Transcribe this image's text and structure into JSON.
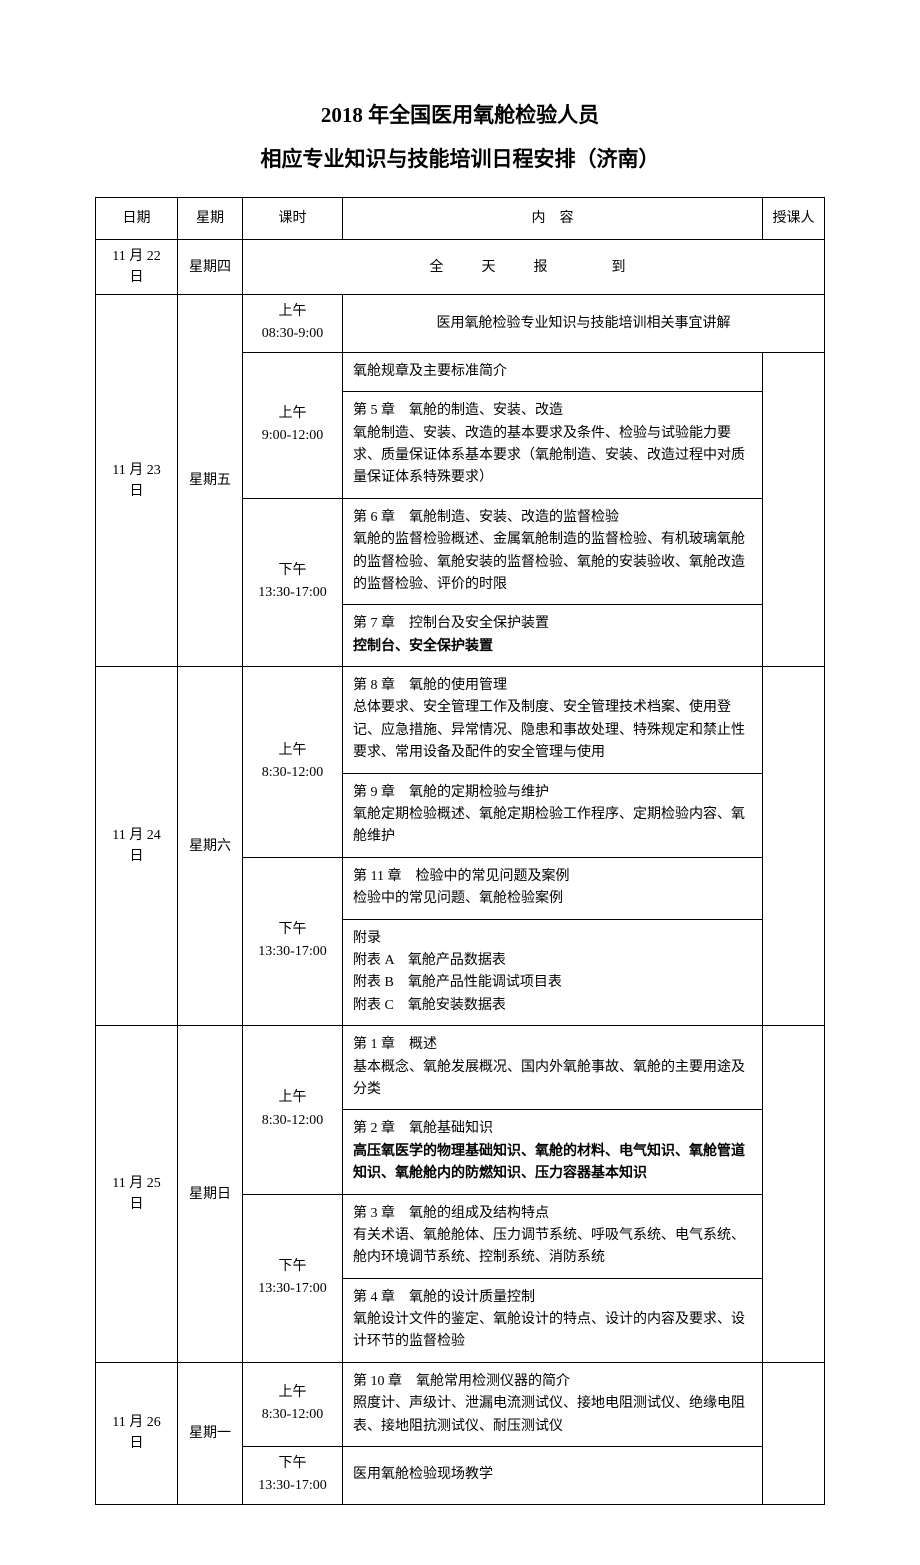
{
  "title": "2018 年全国医用氧舱检验人员",
  "subtitle": "相应专业知识与技能培训日程安排（济南）",
  "headers": {
    "date": "日期",
    "weekday": "星期",
    "session": "课时",
    "content": "内　容",
    "lecturer": "授课人"
  },
  "rows": {
    "r1": {
      "date": "11 月 22 日",
      "weekday": "星期四",
      "content": "全　天　报　　到"
    },
    "r2": {
      "date": "11 月 23 日",
      "weekday": "星期五",
      "s1_time_a": "上午",
      "s1_time_b": "08:30-9:00",
      "s1_content": "医用氧舱检验专业知识与技能培训相关事宜讲解",
      "s2_time_a": "上午",
      "s2_time_b": "9:00-12:00",
      "s2_c1": "氧舱规章及主要标准简介",
      "s2_c2": "第 5 章　氧舱的制造、安装、改造\n氧舱制造、安装、改造的基本要求及条件、检验与试验能力要求、质量保证体系基本要求（氧舱制造、安装、改造过程中对质量保证体系特殊要求）",
      "s3_time_a": "下午",
      "s3_time_b": "13:30-17:00",
      "s3_c1": "第 6 章　氧舱制造、安装、改造的监督检验\n氧舱的监督检验概述、金属氧舱制造的监督检验、有机玻璃氧舱的监督检验、氧舱安装的监督检验、氧舱的安装验收、氧舱改造的监督检验、评价的时限",
      "s3_c2a": "第 7 章　控制台及安全保护装置",
      "s3_c2b": "控制台、安全保护装置"
    },
    "r3": {
      "date": "11 月 24 日",
      "weekday": "星期六",
      "s1_time_a": "上午",
      "s1_time_b": "8:30-12:00",
      "s1_c1": "第 8 章　氧舱的使用管理\n总体要求、安全管理工作及制度、安全管理技术档案、使用登记、应急措施、异常情况、隐患和事故处理、特殊规定和禁止性要求、常用设备及配件的安全管理与使用",
      "s1_c2": "第 9 章　氧舱的定期检验与维护\n氧舱定期检验概述、氧舱定期检验工作程序、定期检验内容、氧舱维护",
      "s2_time_a": "下午",
      "s2_time_b": "13:30-17:00",
      "s2_c1": "第 11 章　检验中的常见问题及案例\n检验中的常见问题、氧舱检验案例",
      "s2_c2": "附录\n附表 A　氧舱产品数据表\n附表 B　氧舱产品性能调试项目表\n附表 C　氧舱安装数据表"
    },
    "r4": {
      "date": "11 月 25 日",
      "weekday": "星期日",
      "s1_time_a": "上午",
      "s1_time_b": "8:30-12:00",
      "s1_c1": "第 1 章　概述\n基本概念、氧舱发展概况、国内外氧舱事故、氧舱的主要用途及分类",
      "s1_c2a": "第 2 章　氧舱基础知识",
      "s1_c2b": "高压氧医学的物理基础知识、氧舱的材料、电气知识、氧舱管道知识、氧舱舱内的防燃知识、压力容器基本知识",
      "s2_time_a": "下午",
      "s2_time_b": "13:30-17:00",
      "s2_c1": "第 3 章　氧舱的组成及结构特点\n有关术语、氧舱舱体、压力调节系统、呼吸气系统、电气系统、舱内环境调节系统、控制系统、消防系统",
      "s2_c2": "第 4 章　氧舱的设计质量控制\n氧舱设计文件的鉴定、氧舱设计的特点、设计的内容及要求、设计环节的监督检验"
    },
    "r5": {
      "date": "11 月 26 日",
      "weekday": "星期一",
      "s1_time_a": "上午",
      "s1_time_b": "8:30-12:00",
      "s1_c1": "第 10 章　氧舱常用检测仪器的简介\n照度计、声级计、泄漏电流测试仪、接地电阻测试仪、绝缘电阻表、接地阻抗测试仪、耐压测试仪",
      "s2_time_a": "下午",
      "s2_time_b": "13:30-17:00",
      "s2_c1": "医用氧舱检验现场教学"
    }
  }
}
